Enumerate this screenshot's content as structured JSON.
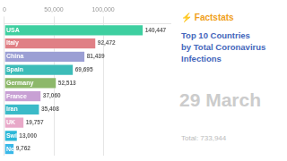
{
  "chart_data": {
    "type": "bar",
    "orientation": "horizontal",
    "title": "Top 10 Countries\nby Total Coronavirus\nInfections",
    "categories": [
      "USA",
      "Italy",
      "China",
      "Spain",
      "Germany",
      "France",
      "Iran",
      "UK",
      "Switzerland",
      "Netherlands"
    ],
    "values": [
      140447,
      92472,
      81439,
      69695,
      52513,
      37060,
      35408,
      19757,
      13000,
      9762
    ],
    "value_labels": [
      "140,447",
      "92,472",
      "81,439",
      "69,695",
      "52,513",
      "37,060",
      "35,408",
      "19,757",
      "13,000",
      "9,762"
    ],
    "data_labels": true,
    "colors": [
      "#3ecfa0",
      "#e07f85",
      "#9b9fd4",
      "#3dbcb8",
      "#8db86a",
      "#c8a0d4",
      "#3bbac8",
      "#e8a8c8",
      "#2bb8d8",
      "#3ab8e8"
    ],
    "xlim": [
      0,
      168000
    ],
    "xticks": [
      0,
      {
        "value": 50000,
        "label": "50,000"
      },
      {
        "value": 100000,
        "label": "100,000"
      }
    ],
    "grid": true,
    "annotations": [
      "⚡ Factstats",
      "29 March",
      "Total: 733,944"
    ]
  }
}
